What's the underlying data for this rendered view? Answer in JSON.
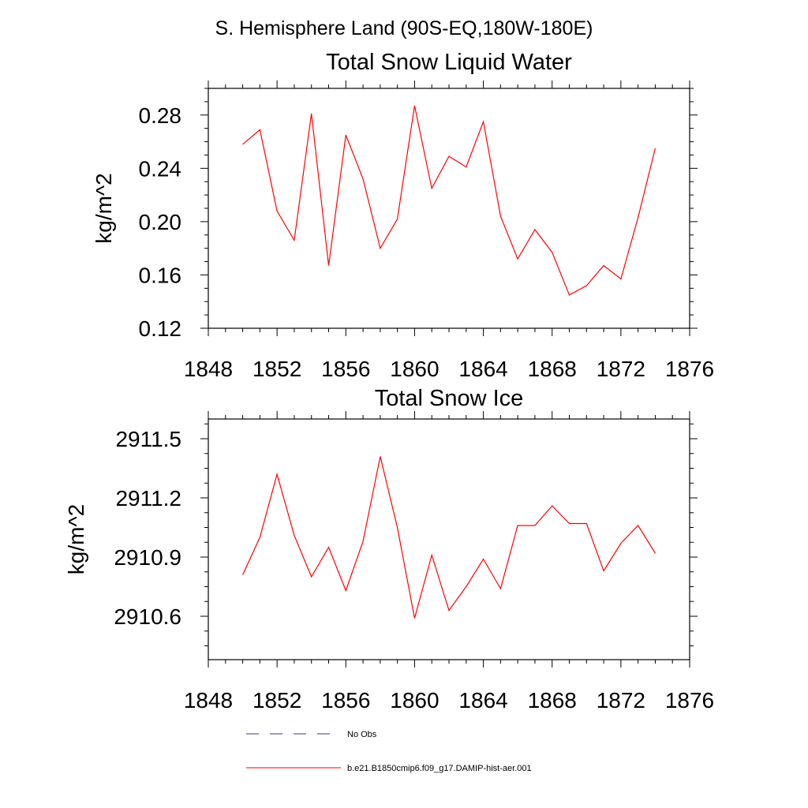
{
  "figure": {
    "suptitle": "S. Hemisphere Land (90S-EQ,180W-180E)"
  },
  "legend": [
    {
      "label": "No Obs",
      "style": "dashed",
      "color": "#3b3b6b"
    },
    {
      "label": "b.e21.B1850cmip6.f09_g17.DAMIP-hist-aer.001",
      "style": "solid",
      "color": "#ff0000"
    }
  ],
  "chart_data": [
    {
      "type": "line",
      "title": "Total Snow Liquid Water",
      "xlabel": "",
      "ylabel": "kg/m^2",
      "xlim": [
        1848,
        1876
      ],
      "ylim": [
        0.12,
        0.3
      ],
      "x_ticks": [
        1848,
        1852,
        1856,
        1860,
        1864,
        1868,
        1872,
        1876
      ],
      "y_ticks": [
        0.12,
        0.16,
        0.2,
        0.24,
        0.28
      ],
      "y_tick_labels": [
        "0.12",
        "0.16",
        "0.20",
        "0.24",
        "0.28"
      ],
      "grid": false,
      "series": [
        {
          "name": "b.e21.B1850cmip6.f09_g17.DAMIP-hist-aer.001",
          "color": "#ff0000",
          "x": [
            1850,
            1851,
            1852,
            1853,
            1854,
            1855,
            1856,
            1857,
            1858,
            1859,
            1860,
            1861,
            1862,
            1863,
            1864,
            1865,
            1866,
            1867,
            1868,
            1869,
            1870,
            1871,
            1872,
            1873,
            1874
          ],
          "values": [
            0.258,
            0.269,
            0.208,
            0.186,
            0.281,
            0.167,
            0.265,
            0.232,
            0.18,
            0.202,
            0.287,
            0.225,
            0.249,
            0.241,
            0.275,
            0.204,
            0.172,
            0.194,
            0.177,
            0.145,
            0.152,
            0.167,
            0.157,
            0.203,
            0.255
          ]
        }
      ]
    },
    {
      "type": "line",
      "title": "Total Snow Ice",
      "xlabel": "",
      "ylabel": "kg/m^2",
      "xlim": [
        1848,
        1876
      ],
      "ylim": [
        2910.38,
        2911.6
      ],
      "x_ticks": [
        1848,
        1852,
        1856,
        1860,
        1864,
        1868,
        1872,
        1876
      ],
      "y_ticks": [
        2910.6,
        2910.9,
        2911.2,
        2911.5
      ],
      "y_tick_labels": [
        "2910.6",
        "2910.9",
        "2911.2",
        "2911.5"
      ],
      "grid": false,
      "series": [
        {
          "name": "b.e21.B1850cmip6.f09_g17.DAMIP-hist-aer.001",
          "color": "#ff0000",
          "x": [
            1850,
            1851,
            1852,
            1853,
            1854,
            1855,
            1856,
            1857,
            1858,
            1859,
            1860,
            1861,
            1862,
            1863,
            1864,
            1865,
            1866,
            1867,
            1868,
            1869,
            1870,
            1871,
            1872,
            1873,
            1874
          ],
          "values": [
            2910.81,
            2911.0,
            2911.32,
            2911.01,
            2910.8,
            2910.95,
            2910.73,
            2910.98,
            2911.41,
            2911.05,
            2910.59,
            2910.91,
            2910.63,
            2910.75,
            2910.89,
            2910.74,
            2911.06,
            2911.06,
            2911.16,
            2911.07,
            2911.07,
            2910.83,
            2910.97,
            2911.06,
            2910.92
          ]
        }
      ]
    }
  ]
}
